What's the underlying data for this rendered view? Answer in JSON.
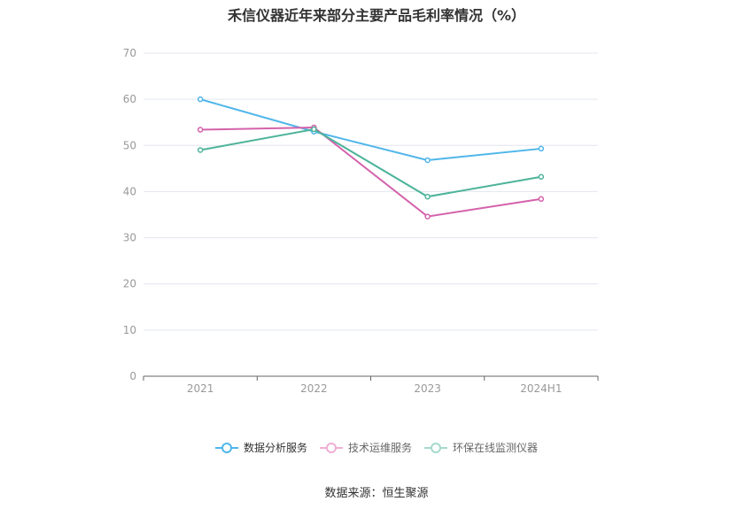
{
  "title": "禾信仪器近年来部分主要产品毛利率情况（%）",
  "source": "数据来源：恒生聚源",
  "chart_data": {
    "type": "line",
    "categories": [
      "2021",
      "2022",
      "2023",
      "2024H1"
    ],
    "ylim": [
      0,
      70
    ],
    "yticks": [
      "0",
      "10",
      "20",
      "30",
      "40",
      "50",
      "60",
      "70"
    ],
    "grid": true,
    "legend_position": "bottom",
    "series": [
      {
        "name": "数据分析服务",
        "color": "#4fb6ea",
        "values": [
          60.0,
          53.0,
          46.8,
          49.3
        ]
      },
      {
        "name": "技术运维服务",
        "color": "#d462ab",
        "values": [
          53.4,
          53.9,
          34.6,
          38.4
        ]
      },
      {
        "name": "环保在线监测仪器",
        "color": "#4db39a",
        "values": [
          49.0,
          53.5,
          38.9,
          43.2
        ]
      }
    ]
  }
}
